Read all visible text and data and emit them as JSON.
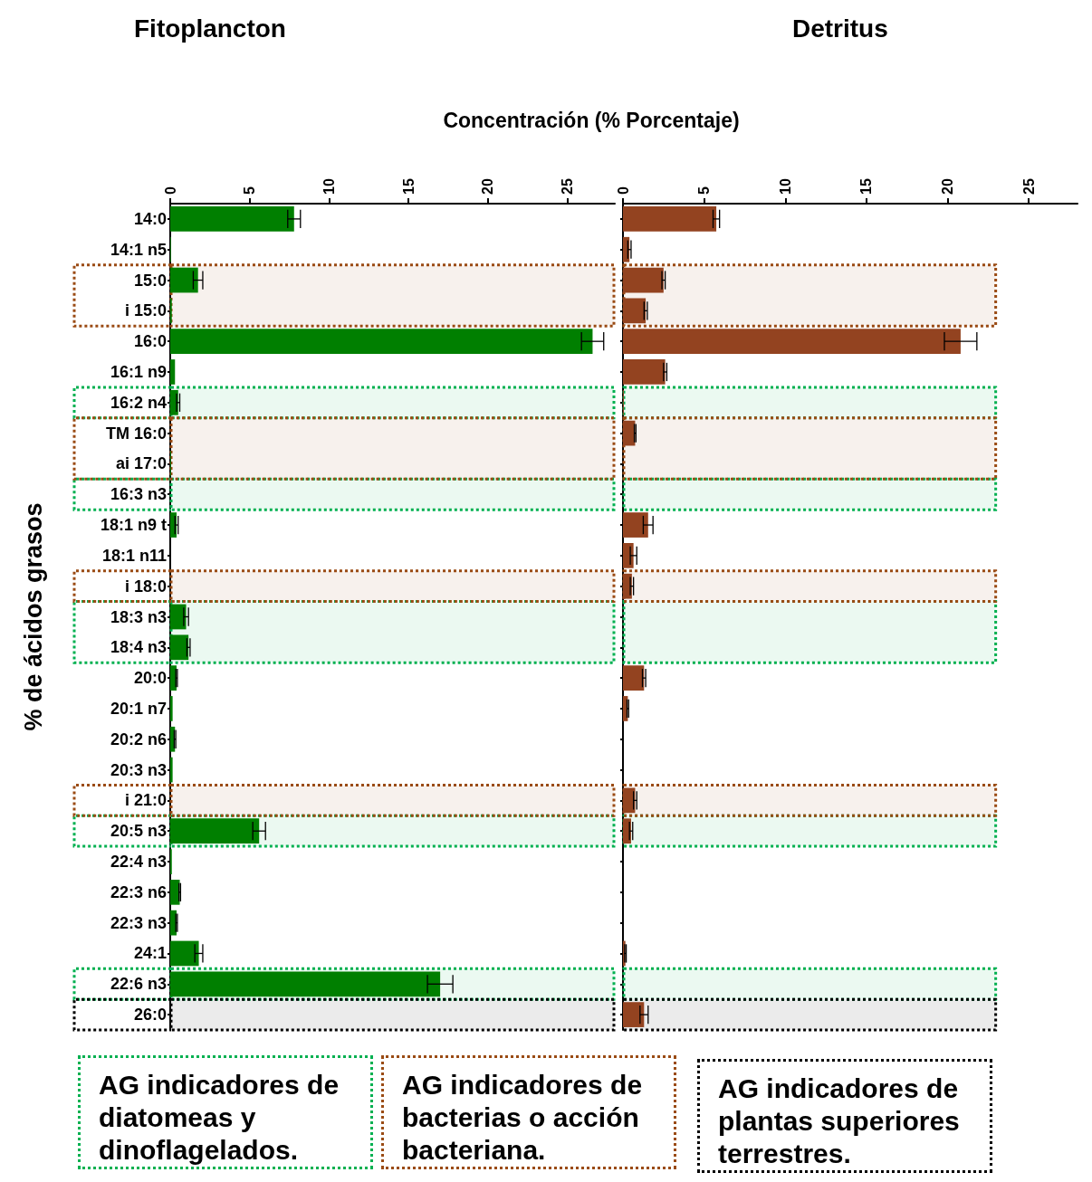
{
  "chart_data": [
    {
      "type": "bar",
      "orientation": "horizontal",
      "title": "Fitoplancton",
      "xlabel": "Concentración (% Porcentaje)",
      "ylabel": "% de ácidos grasos",
      "categories": [
        "14:0",
        "14:1 n5",
        "15:0",
        "i 15:0",
        "16:0",
        "16:1 n9",
        "16:2 n4",
        "TM 16:0",
        "ai 17:0",
        "16:3 n3",
        "18:1 n9 t",
        "18:1 n11",
        "i 18:0",
        "18:3 n3",
        "18:4 n3",
        "20:0",
        "20:1 n7",
        "20:2 n6",
        "20:3 n3",
        "i 21:0",
        "20:5 n3",
        "22:4 n3",
        "22:3 n6",
        "22:3 n3",
        "24:1",
        "22:6 n3",
        "26:0"
      ],
      "series": [
        {
          "color": "#007f00",
          "values": [
            7.8,
            0.05,
            1.75,
            0.1,
            26.6,
            0.3,
            0.5,
            0,
            0.05,
            0,
            0.4,
            0,
            0,
            1.0,
            1.15,
            0.4,
            0.15,
            0.3,
            0.15,
            0,
            5.6,
            0.1,
            0.6,
            0.4,
            1.8,
            17.0,
            0
          ],
          "errors": [
            0.4,
            null,
            0.3,
            null,
            0.7,
            null,
            0.1,
            null,
            null,
            null,
            0.1,
            null,
            null,
            0.15,
            0.1,
            0.05,
            null,
            0.05,
            null,
            null,
            0.4,
            null,
            0.05,
            0.05,
            0.25,
            0.8,
            null
          ]
        }
      ],
      "xlim": [
        0,
        28
      ],
      "xticks": [
        0,
        5,
        10,
        15,
        20,
        25
      ],
      "bands": [
        {
          "axis": "y",
          "from": "16:2 n4",
          "to": "16:2 n4",
          "color": "#00b050"
        },
        {
          "axis": "y",
          "from": "16:3 n3",
          "to": "16:3 n3",
          "color": "#00b050"
        },
        {
          "axis": "y",
          "from": "18:3 n3",
          "to": "18:4 n3",
          "color": "#00b050"
        },
        {
          "axis": "y",
          "from": "20:5 n3",
          "to": "20:5 n3",
          "color": "#00b050"
        },
        {
          "axis": "y",
          "from": "22:6 n3",
          "to": "22:6 n3",
          "color": "#00b050"
        },
        {
          "axis": "y",
          "from": "15:0",
          "to": "i 15:0",
          "color": "#9a4b14"
        },
        {
          "axis": "y",
          "from": "TM 16:0",
          "to": "ai 17:0",
          "color": "#9a4b14"
        },
        {
          "axis": "y",
          "from": "i 18:0",
          "to": "i 18:0",
          "color": "#9a4b14"
        },
        {
          "axis": "y",
          "from": "i 21:0",
          "to": "i 21:0",
          "color": "#9a4b14"
        },
        {
          "axis": "y",
          "from": "26:0",
          "to": "26:0",
          "color": "#000000"
        }
      ],
      "annotations": [
        "AG indicadores de diatomeas y dinoflagelados.",
        "AG indicadores de bacterias o acción bacteriana.",
        "AG indicadores de plantas superiores terrestres."
      ]
    },
    {
      "type": "bar",
      "orientation": "horizontal",
      "title": "Detritus",
      "tick_labels": "x",
      "categories": [
        "14:0",
        "14:1 n5",
        "15:0",
        "i 15:0",
        "16:0",
        "16:1 n9",
        "16:2 n4",
        "TM 16:0",
        "ai 17:0",
        "16:3 n3",
        "18:1 n9 t",
        "18:1 n11",
        "i 18:0",
        "18:3 n3",
        "18:4 n3",
        "20:0",
        "20:1 n7",
        "20:2 n6",
        "20:3 n3",
        "i 21:0",
        "20:5 n3",
        "22:4 n3",
        "22:3 n6",
        "22:3 n3",
        "24:1",
        "22:6 n3",
        "26:0"
      ],
      "series": [
        {
          "color": "#934320",
          "values": [
            5.75,
            0.4,
            2.5,
            1.4,
            20.8,
            2.6,
            0.05,
            0.75,
            0,
            0,
            1.55,
            0.65,
            0.55,
            0,
            0,
            1.3,
            0.3,
            0,
            0,
            0.75,
            0.5,
            0,
            0,
            0,
            0.15,
            0,
            1.3
          ],
          "errors": [
            0.2,
            0.1,
            0.1,
            0.1,
            1.0,
            0.1,
            null,
            0.05,
            null,
            null,
            0.3,
            0.2,
            0.1,
            null,
            null,
            0.1,
            0.05,
            null,
            null,
            0.1,
            0.1,
            null,
            null,
            null,
            0.05,
            null,
            0.25
          ]
        }
      ],
      "xlim": [
        0,
        28
      ],
      "xticks": [
        0,
        5,
        10,
        15,
        20,
        25
      ],
      "bands": [
        {
          "axis": "y",
          "from": "16:2 n4",
          "to": "16:2 n4",
          "color": "#00b050"
        },
        {
          "axis": "y",
          "from": "16:3 n3",
          "to": "16:3 n3",
          "color": "#00b050"
        },
        {
          "axis": "y",
          "from": "18:3 n3",
          "to": "18:4 n3",
          "color": "#00b050"
        },
        {
          "axis": "y",
          "from": "20:5 n3",
          "to": "20:5 n3",
          "color": "#00b050"
        },
        {
          "axis": "y",
          "from": "22:6 n3",
          "to": "22:6 n3",
          "color": "#00b050"
        },
        {
          "axis": "y",
          "from": "15:0",
          "to": "i 15:0",
          "color": "#9a4b14"
        },
        {
          "axis": "y",
          "from": "TM 16:0",
          "to": "ai 17:0",
          "color": "#9a4b14"
        },
        {
          "axis": "y",
          "from": "i 18:0",
          "to": "i 18:0",
          "color": "#9a4b14"
        },
        {
          "axis": "y",
          "from": "i 21:0",
          "to": "i 21:0",
          "color": "#9a4b14"
        },
        {
          "axis": "y",
          "from": "26:0",
          "to": "26:0",
          "color": "#000000"
        }
      ]
    }
  ]
}
